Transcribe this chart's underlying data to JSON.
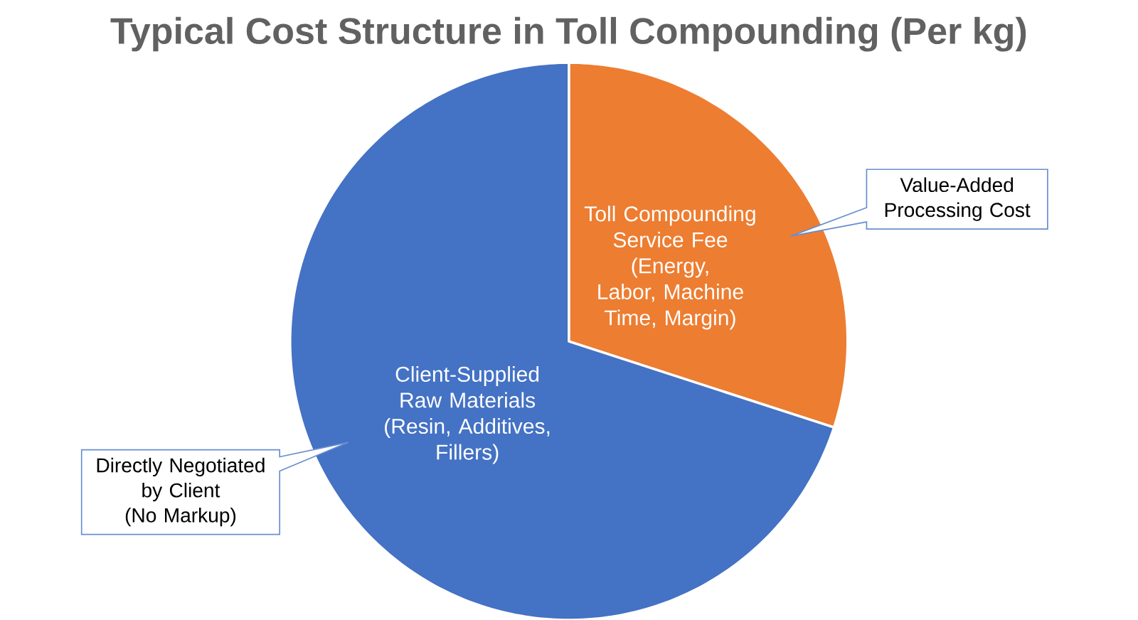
{
  "chart_data": {
    "type": "pie",
    "title": "Typical Cost Structure in Toll Compounding (Per kg)",
    "categories": [
      "Toll Compounding Service Fee (Energy, Labor, Machine Time, Margin)",
      "Client-Supplied Raw Materials (Resin, Additives, Fillers)"
    ],
    "values": [
      30,
      70
    ],
    "colors": [
      "#ed7d31",
      "#4472c4"
    ],
    "annotations": [
      "Value-Added Processing Cost",
      "Directly Negotiated by Client (No Markup)"
    ]
  }
}
